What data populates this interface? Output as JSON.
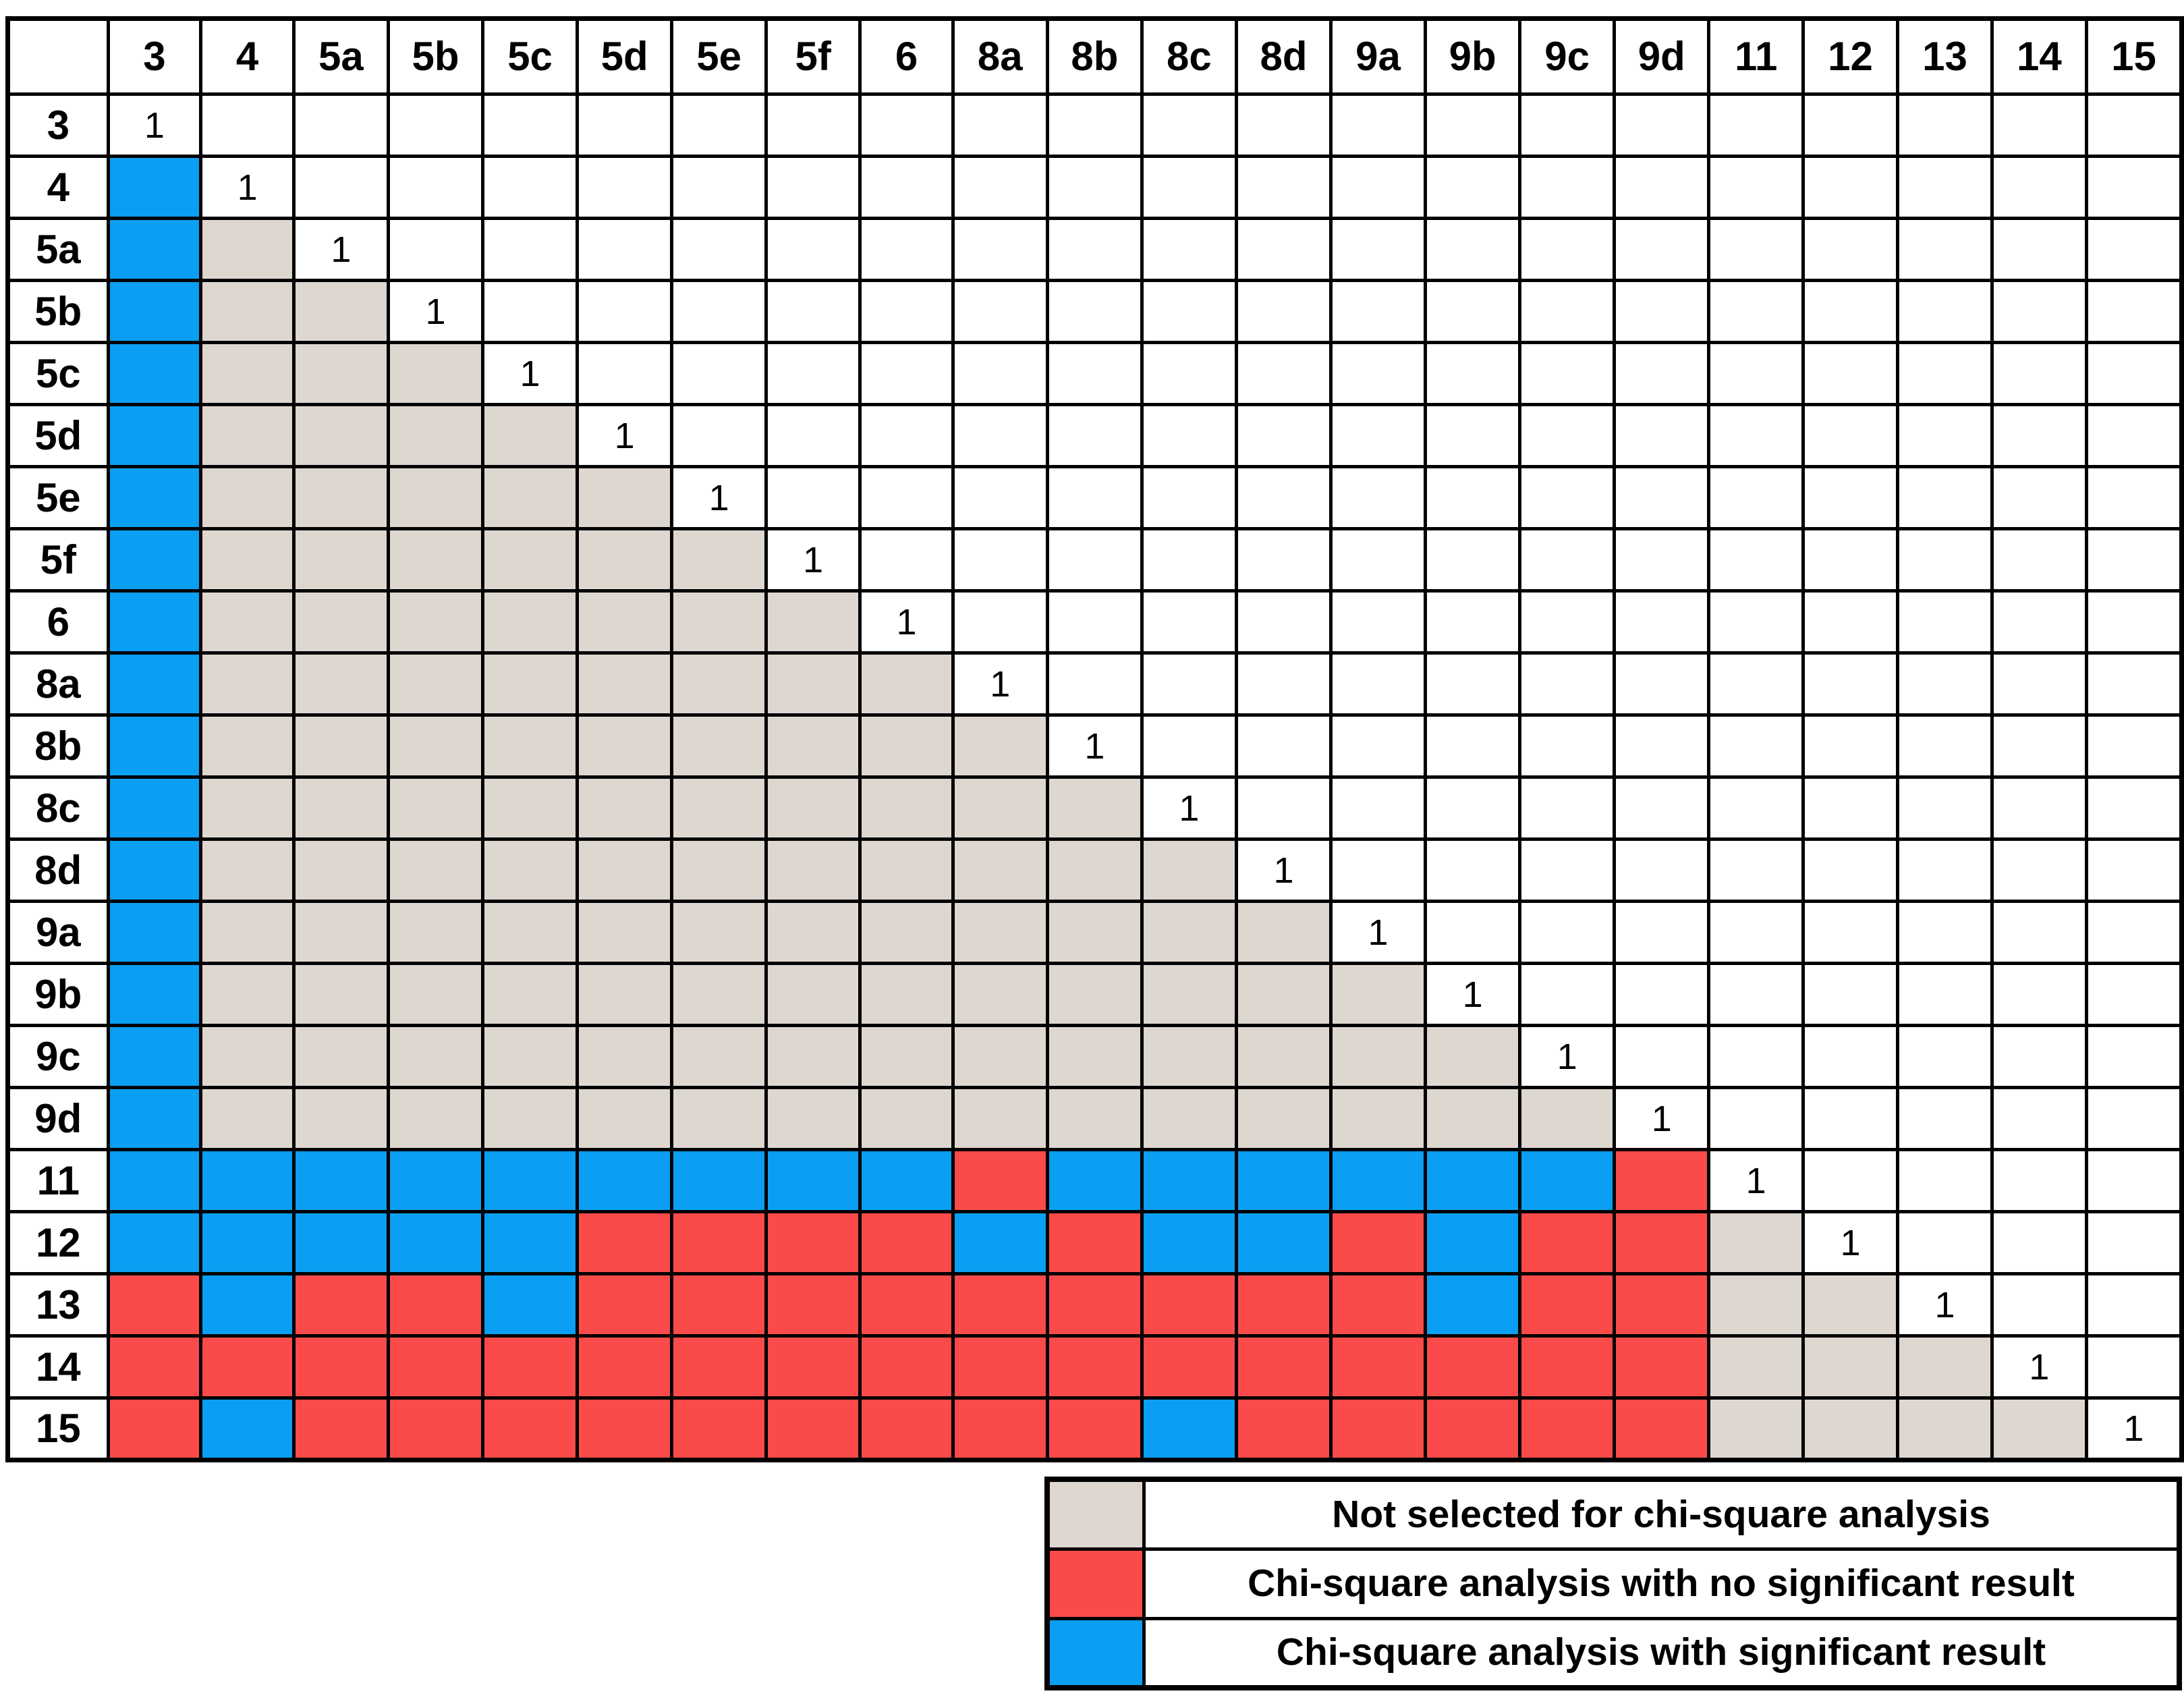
{
  "chart_data": {
    "type": "heatmap",
    "title": "",
    "categories": [
      "3",
      "4",
      "5a",
      "5b",
      "5c",
      "5d",
      "5e",
      "5f",
      "6",
      "8a",
      "8b",
      "8c",
      "8d",
      "9a",
      "9b",
      "9c",
      "9d",
      "11",
      "12",
      "13",
      "14",
      "15"
    ],
    "diagonal_label": "1",
    "codes": {
      ".": "empty cell above diagonal (white)",
      "1": "diagonal self-pair, displays value 1",
      "g": "not selected for chi-square analysis",
      "r": "chi-square analysis with no significant result",
      "b": "chi-square analysis with significant result"
    },
    "matrix": [
      "1.....................",
      "b1....................",
      "bg1...................",
      "bgg1..................",
      "bggg1.................",
      "bgggg1................",
      "bggggg1...............",
      "bgggggg1..............",
      "bggggggg1.............",
      "bgggggggg1............",
      "bggggggggg1...........",
      "bgggggggggg1..........",
      "bggggggggggg1.........",
      "bgggggggggggg1........",
      "bggggggggggggg1.......",
      "bgggggggggggggg1......",
      "bggggggggggggggg1.....",
      "bbbbbbbbbrbbbbbbr1....",
      "bbbbbrrrrbrbbrbrrg1...",
      "rbrrbrrrrrrrrrbrrgg1..",
      "rrrrrrrrrrrrrrrrrggg1.",
      "rbrrrrrrrrrbrrrrrgggg1"
    ],
    "legend": [
      {
        "code": "g",
        "label": "Not selected for chi-square analysis"
      },
      {
        "code": "r",
        "label": "Chi-square analysis with no significant result"
      },
      {
        "code": "b",
        "label": "Chi-square analysis with significant result"
      }
    ],
    "colors": {
      "g": "#DED7D0",
      "r": "#FA4A4A",
      "b": "#0A9FF2",
      "grid": "#000000",
      "background": "#FFFFFF"
    },
    "layout": {
      "legend_position": "bottom-right",
      "grid": true
    }
  }
}
